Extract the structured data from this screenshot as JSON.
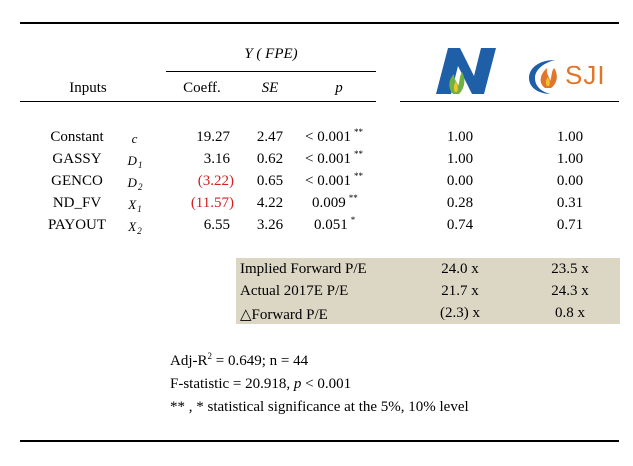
{
  "header": {
    "group_title": "Y ( FPE)",
    "inputs_label": "Inputs",
    "coeff_label": "Coeff.",
    "se_label": "SE",
    "p_label": "p"
  },
  "logos": {
    "nj_letter": "N",
    "sji_text": "SJI",
    "nj_color": "#1f5fa8",
    "sji_color": "#e0762a"
  },
  "rows": [
    {
      "name": "Constant",
      "sym": "c",
      "sub": "",
      "coeff": "19.27",
      "se": "2.47",
      "p": "< 0.001",
      "stars": "**",
      "nj": "1.00",
      "sji": "1.00",
      "neg": false
    },
    {
      "name": "GASSY",
      "sym": "D",
      "sub": "1",
      "coeff": "3.16",
      "se": "0.62",
      "p": "< 0.001",
      "stars": "**",
      "nj": "1.00",
      "sji": "1.00",
      "neg": false
    },
    {
      "name": "GENCO",
      "sym": "D",
      "sub": "2",
      "coeff": "(3.22)",
      "se": "0.65",
      "p": "< 0.001",
      "stars": "**",
      "nj": "0.00",
      "sji": "0.00",
      "neg": true
    },
    {
      "name": "ND_FV",
      "sym": "X",
      "sub": "1",
      "coeff": "(11.57)",
      "se": "4.22",
      "p": "0.009",
      "stars": "**",
      "nj": "0.28",
      "sji": "0.31",
      "neg": true
    },
    {
      "name": "PAYOUT",
      "sym": "X",
      "sub": "2",
      "coeff": "6.55",
      "se": "3.26",
      "p": "0.051",
      "stars": "*",
      "nj": "0.74",
      "sji": "0.71",
      "neg": false
    }
  ],
  "summary": [
    {
      "label": "Implied Forward P/E",
      "nj": "24.0 x",
      "sji": "23.5 x"
    },
    {
      "label": "Actual 2017E P/E",
      "nj": "21.7 x",
      "sji": "24.3 x"
    },
    {
      "label": "△Forward P/E",
      "nj": "(2.3) x",
      "sji": "0.8 x"
    }
  ],
  "notes": {
    "adj_r2_prefix": "Adj-R",
    "adj_r2_sup": "2",
    "adj_r2_rest": " =  0.649; n = 44",
    "f_stat_prefix": "F-statistic = 20.918, ",
    "f_stat_p": "p",
    "f_stat_rest": " < 0.001",
    "significance": "** , *  statistical significance at the 5%, 10% level"
  },
  "colors": {
    "negative": "#d21f1f",
    "summary_bg": "#dcd7c5"
  }
}
